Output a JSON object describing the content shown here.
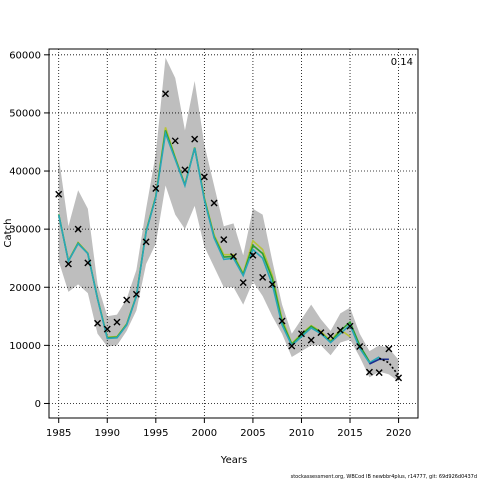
{
  "chart_data": {
    "type": "line",
    "xlabel": "Years",
    "ylabel": "Catch",
    "corner_label": "0.14",
    "footer": "stockassessment.org, WBCod IB newbbr4plus, r14777, git: 69d926d0437d",
    "xlim": [
      1984,
      2022
    ],
    "ylim": [
      -2500,
      61000
    ],
    "xticks": [
      1985,
      1990,
      1995,
      2000,
      2005,
      2010,
      2015,
      2020
    ],
    "yticks": [
      0,
      10000,
      20000,
      30000,
      40000,
      50000,
      60000
    ],
    "grid": true,
    "colors": {
      "band": "#bebebe",
      "observed": "#000000",
      "estimate": "#000000",
      "peel1": "#1a2c8f",
      "peel2": "#2aa6b8",
      "peel3": "#2ca02c",
      "peel4": "#b8c33a"
    },
    "years": [
      1985,
      1986,
      1987,
      1988,
      1989,
      1990,
      1991,
      1992,
      1993,
      1994,
      1995,
      1996,
      1997,
      1998,
      1999,
      2000,
      2001,
      2002,
      2003,
      2004,
      2005,
      2006,
      2007,
      2008,
      2009,
      2010,
      2011,
      2012,
      2013,
      2014,
      2015,
      2016,
      2017,
      2018,
      2019,
      2020
    ],
    "observed": [
      36000,
      24000,
      30000,
      24200,
      13800,
      12800,
      14000,
      17800,
      18800,
      27800,
      37000,
      53300,
      45200,
      40200,
      45500,
      39000,
      34500,
      28200,
      25300,
      20800,
      25500,
      21700,
      20500,
      14200,
      9900,
      12000,
      10900,
      12200,
      11600,
      12600,
      13300,
      9800,
      5400,
      5300,
      9400,
      4400
    ],
    "upper": [
      42500,
      30500,
      36700,
      33500,
      20500,
      15000,
      15300,
      18000,
      23000,
      33500,
      43000,
      59500,
      56000,
      47000,
      55500,
      44500,
      37500,
      30500,
      31000,
      25500,
      33500,
      32500,
      24500,
      17000,
      12000,
      14500,
      17000,
      14500,
      12500,
      15500,
      16500,
      12000,
      9000,
      10000,
      9500,
      7500
    ],
    "lower": [
      24500,
      19200,
      20500,
      19000,
      12000,
      9800,
      10000,
      12500,
      16000,
      24000,
      27500,
      37500,
      32500,
      30000,
      34000,
      27000,
      23500,
      20000,
      20000,
      17000,
      21000,
      18500,
      15000,
      12000,
      8000,
      9000,
      10000,
      10000,
      8300,
      10500,
      11000,
      8000,
      4500,
      5500,
      5000,
      3800
    ],
    "estimate": [
      null,
      null,
      null,
      null,
      null,
      null,
      null,
      null,
      null,
      null,
      null,
      null,
      null,
      null,
      null,
      null,
      null,
      null,
      null,
      null,
      null,
      null,
      null,
      null,
      null,
      null,
      null,
      null,
      null,
      null,
      null,
      null,
      null,
      7800,
      7000,
      4800
    ],
    "peels": [
      {
        "values": [
          null,
          null,
          null,
          null,
          null,
          null,
          null,
          null,
          null,
          null,
          null,
          null,
          null,
          null,
          null,
          null,
          null,
          null,
          null,
          null,
          null,
          null,
          null,
          null,
          null,
          null,
          null,
          null,
          null,
          null,
          null,
          null,
          6800,
          7600,
          7600,
          null
        ]
      },
      {
        "values": [
          32500,
          24500,
          27500,
          25800,
          18000,
          11200,
          11300,
          13500,
          18500,
          29500,
          35500,
          46500,
          42000,
          37500,
          44000,
          35000,
          28500,
          24800,
          25000,
          22000,
          26500,
          25000,
          20500,
          13500,
          10000,
          11500,
          13000,
          12000,
          10500,
          12000,
          13500,
          9500,
          7000,
          8000,
          null,
          null
        ]
      },
      {
        "values": [
          32500,
          24500,
          27600,
          25800,
          18000,
          11300,
          11400,
          13600,
          18500,
          29600,
          35600,
          47000,
          42200,
          37600,
          44000,
          35200,
          28700,
          25200,
          25300,
          22200,
          27200,
          25800,
          21500,
          14000,
          10200,
          11800,
          13300,
          12200,
          10600,
          12500,
          14000,
          10000,
          7200,
          null,
          null,
          null
        ]
      },
      {
        "values": [
          32600,
          24600,
          27700,
          25900,
          18100,
          11400,
          11500,
          13700,
          18600,
          29700,
          35700,
          47500,
          42400,
          37700,
          44100,
          35400,
          29000,
          25600,
          25600,
          22400,
          28000,
          26500,
          22000,
          14500,
          10300,
          12000,
          13400,
          12400,
          10800,
          12700,
          11500,
          null,
          null,
          null,
          null,
          null
        ]
      }
    ]
  }
}
